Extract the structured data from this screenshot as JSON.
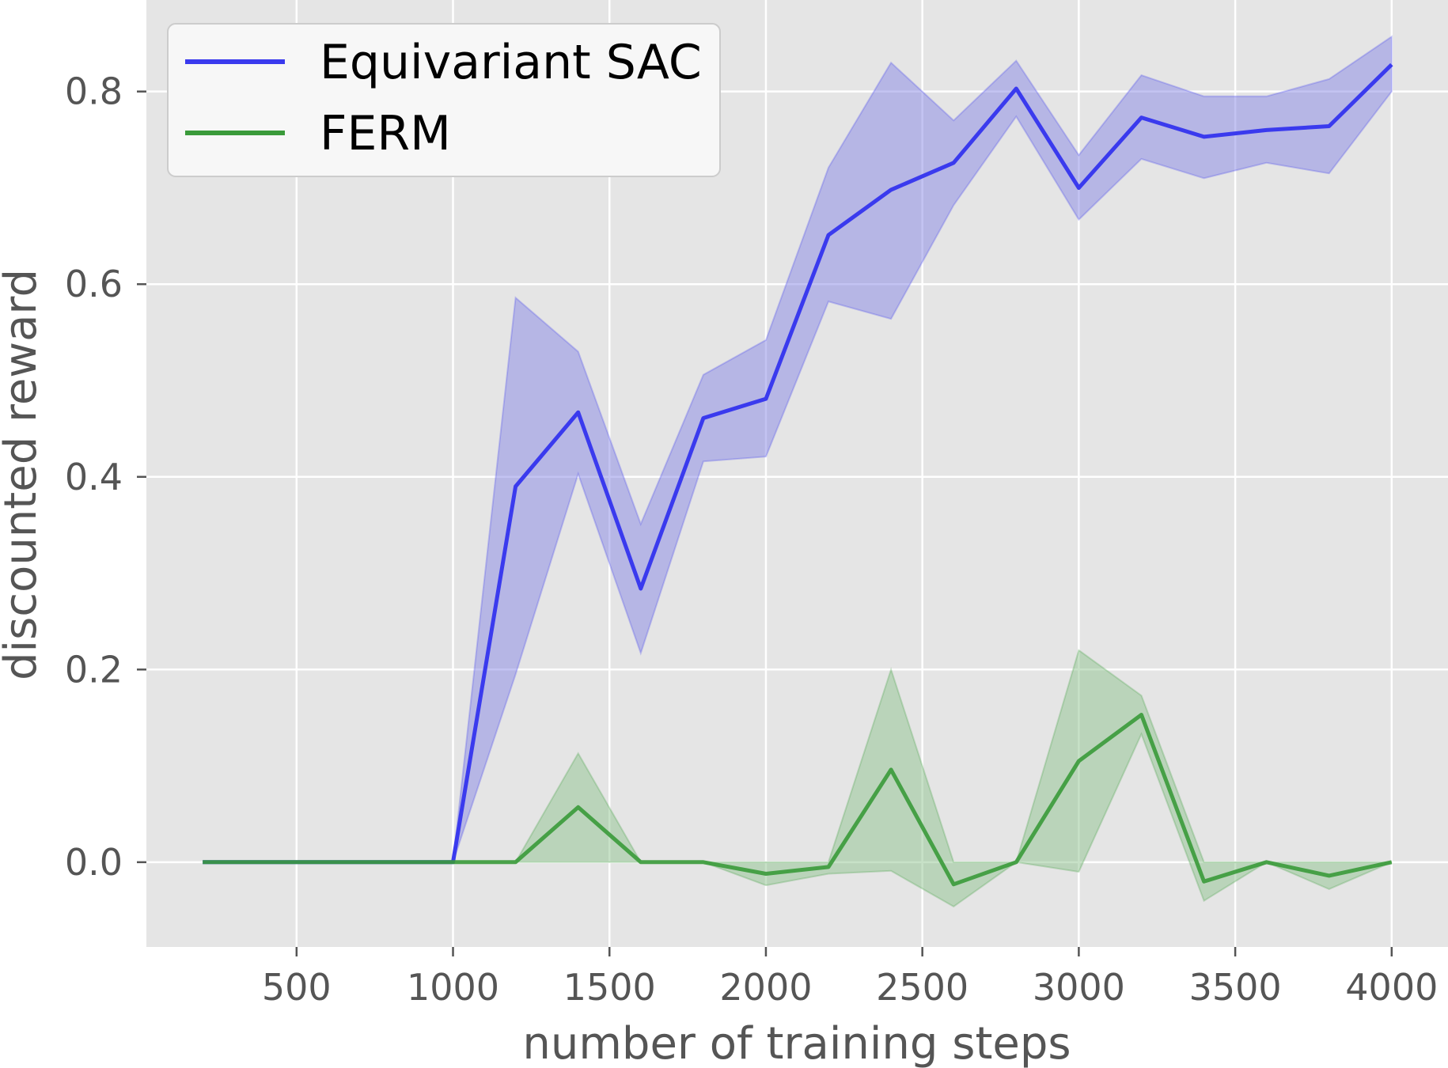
{
  "chart_data": {
    "type": "line",
    "xlabel": "number of training steps",
    "ylabel": "discounted reward",
    "xlim": [
      20,
      4180
    ],
    "ylim": [
      -0.088,
      0.895
    ],
    "xticks": [
      500,
      1000,
      1500,
      2000,
      2500,
      3000,
      3500,
      4000
    ],
    "xtick_labels": [
      "500",
      "1000",
      "1500",
      "2000",
      "2500",
      "3000",
      "3500",
      "4000"
    ],
    "yticks": [
      0.0,
      0.2,
      0.4,
      0.6,
      0.8
    ],
    "ytick_labels": [
      "0.0",
      "0.2",
      "0.4",
      "0.6",
      "0.8"
    ],
    "grid": true,
    "legend_position": "top-left",
    "background": "#e5e5e5",
    "x": [
      200,
      400,
      600,
      800,
      1000,
      1200,
      1400,
      1600,
      1800,
      2000,
      2200,
      2400,
      2600,
      2800,
      3000,
      3200,
      3400,
      3600,
      3800,
      4000
    ],
    "series": [
      {
        "name": "Equivariant SAC",
        "color": "#3a3aee",
        "fill": "#8888e6",
        "values": [
          0,
          0,
          0,
          0,
          0,
          0.39,
          0.467,
          0.284,
          0.461,
          0.481,
          0.651,
          0.698,
          0.726,
          0.803,
          0.7,
          0.773,
          0.753,
          0.76,
          0.764,
          0.828
        ],
        "lower": [
          0,
          0,
          0,
          0,
          0,
          0.195,
          0.403,
          0.217,
          0.416,
          0.421,
          0.582,
          0.564,
          0.682,
          0.774,
          0.667,
          0.73,
          0.71,
          0.726,
          0.715,
          0.8
        ],
        "upper": [
          0,
          0,
          0,
          0,
          0,
          0.586,
          0.53,
          0.351,
          0.506,
          0.542,
          0.721,
          0.83,
          0.77,
          0.832,
          0.734,
          0.817,
          0.795,
          0.795,
          0.813,
          0.857
        ]
      },
      {
        "name": "FERM",
        "color": "#3a9a3a",
        "fill": "#8fc48f",
        "values": [
          0,
          0,
          0,
          0,
          0,
          0,
          0.057,
          0,
          0,
          -0.012,
          -0.005,
          0.096,
          -0.023,
          0,
          0.105,
          0.153,
          -0.02,
          0,
          -0.014,
          0
        ],
        "lower": [
          0,
          0,
          0,
          0,
          0,
          0,
          0,
          0,
          0,
          -0.024,
          -0.012,
          -0.009,
          -0.046,
          0,
          -0.01,
          0.133,
          -0.04,
          0,
          -0.028,
          0
        ],
        "upper": [
          0,
          0,
          0,
          0,
          0,
          0,
          0.113,
          0,
          0,
          0,
          0,
          0.2,
          0,
          0,
          0.22,
          0.173,
          0,
          0,
          0,
          0
        ]
      }
    ]
  }
}
